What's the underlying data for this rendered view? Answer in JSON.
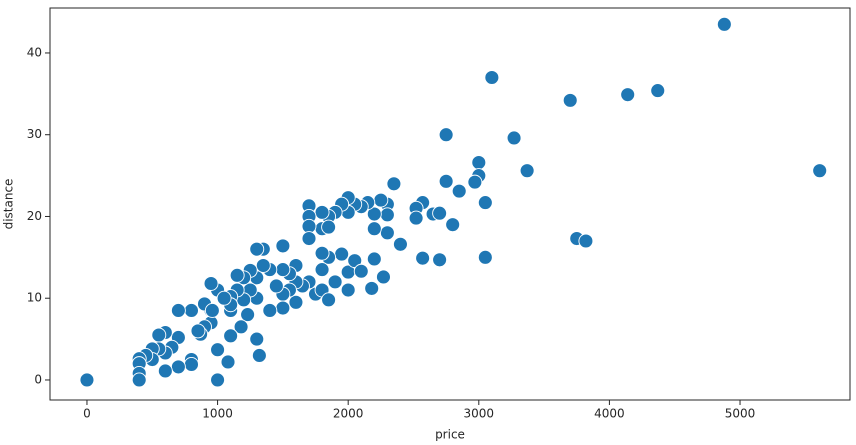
{
  "chart_data": {
    "type": "scatter",
    "xlabel": "price",
    "ylabel": "distance",
    "xlim": [
      -283,
      5842
    ],
    "ylim": [
      -2.45,
      45.5
    ],
    "xticks": [
      0,
      1000,
      2000,
      3000,
      4000,
      5000
    ],
    "yticks": [
      0,
      10,
      20,
      30,
      40
    ],
    "x": [
      0,
      4880,
      3100,
      3700,
      4140,
      4370,
      2750,
      3270,
      5610,
      3370,
      3000,
      3000,
      2970,
      2750,
      2850,
      3050,
      3750,
      3820,
      2800,
      3050,
      2650,
      2700,
      2570,
      2570,
      2520,
      2520,
      2700,
      2400,
      2350,
      2300,
      2300,
      2300,
      2270,
      2250,
      2200,
      2200,
      2180,
      2150,
      2100,
      2050,
      2000,
      2000,
      1950,
      1900,
      1850,
      1800,
      1800,
      1850,
      1700,
      1700,
      1700,
      1700,
      2000,
      2050,
      2000,
      2100,
      2200,
      1950,
      1900,
      1850,
      1800,
      1800,
      1750,
      1800,
      1850,
      1700,
      1650,
      1600,
      1600,
      1600,
      1550,
      1550,
      1500,
      1500,
      1500,
      1500,
      1450,
      1400,
      1400,
      1350,
      1350,
      1300,
      1300,
      1300,
      1320,
      1250,
      1250,
      1230,
      1200,
      1200,
      1180,
      1150,
      1150,
      1100,
      1100,
      1100,
      1080,
      1000,
      1000,
      1000,
      950,
      950,
      950,
      900,
      900,
      870,
      850,
      800,
      800,
      800,
      700,
      700,
      700,
      650,
      600,
      600,
      600,
      550,
      550,
      500,
      500,
      450,
      400,
      400,
      400,
      400,
      1300,
      1100,
      1050,
      960
    ],
    "series": [
      {
        "color": "#1f77b4",
        "values": [
          0,
          43.5,
          37,
          34.2,
          34.9,
          35.4,
          30,
          29.6,
          25.6,
          25.6,
          26.6,
          25,
          24.2,
          24.3,
          23.1,
          21.7,
          17.3,
          17,
          19,
          15,
          20.3,
          14.7,
          14.9,
          21.7,
          21,
          19.8,
          20.4,
          16.6,
          24,
          21.5,
          20.2,
          18,
          12.6,
          22,
          20.3,
          18.5,
          11.2,
          21.7,
          21.2,
          21.5,
          22.3,
          20.5,
          21.5,
          20.5,
          20,
          20.5,
          18.5,
          18.7,
          21.3,
          20,
          18.8,
          17.3,
          13.2,
          14.6,
          11,
          13.3,
          14.8,
          15.4,
          12,
          15,
          15.5,
          13.5,
          10.5,
          11,
          9.8,
          12,
          11.5,
          14,
          12,
          9.5,
          13,
          11,
          16.4,
          13.5,
          10.5,
          8.8,
          11.5,
          13.5,
          8.5,
          16,
          14,
          12.5,
          10,
          5,
          3,
          13.4,
          11,
          8,
          12.5,
          9.8,
          6.5,
          12.8,
          11,
          10.2,
          8.5,
          5.4,
          2.2,
          11,
          3.7,
          0,
          11.8,
          8.5,
          7,
          9.3,
          6.5,
          5.6,
          6,
          8.5,
          2.5,
          1.9,
          8.5,
          5.2,
          1.6,
          4,
          5.8,
          3.3,
          1.1,
          5.5,
          3.8,
          3.8,
          2.5,
          3,
          2.6,
          2,
          0.8,
          0,
          16,
          9.2,
          10,
          8.5
        ]
      }
    ]
  }
}
